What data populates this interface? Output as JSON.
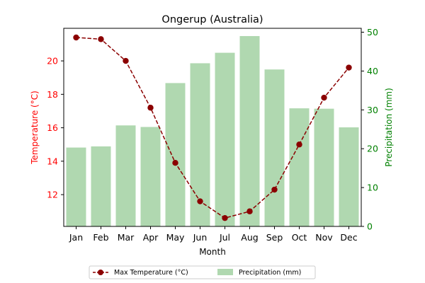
{
  "chart_data": {
    "type": "bar",
    "title": "Ongerup (Australia)",
    "xlabel": "Month",
    "ylabel_left": "Temperature (°C)",
    "ylabel_right": "Precipitation (mm)",
    "categories": [
      "Jan",
      "Feb",
      "Mar",
      "Apr",
      "May",
      "Jun",
      "Jul",
      "Aug",
      "Sep",
      "Oct",
      "Nov",
      "Dec"
    ],
    "series": [
      {
        "name": "Max Temperature (°C)",
        "type": "line",
        "axis": "left",
        "color": "#8b0000",
        "values": [
          21.4,
          21.3,
          20.0,
          17.2,
          13.9,
          11.6,
          10.6,
          11.0,
          12.3,
          15.0,
          17.8,
          19.6
        ]
      },
      {
        "name": "Precipitation (mm)",
        "type": "bar",
        "axis": "right",
        "color": "#b0d8b0",
        "values": [
          20.3,
          20.6,
          26.0,
          25.6,
          36.9,
          42.0,
          44.7,
          49.0,
          40.4,
          30.4,
          30.3,
          25.5
        ]
      }
    ],
    "ylim_left": [
      10.1,
      21.95
    ],
    "ylim_right": [
      0,
      51
    ],
    "yticks_left": [
      12,
      14,
      16,
      18,
      20
    ],
    "yticks_right": [
      0,
      10,
      20,
      30,
      40,
      50
    ],
    "left_axis_color": "#ff0000",
    "right_axis_color": "#008000",
    "grid": false,
    "legend_position": "bottom-center"
  }
}
